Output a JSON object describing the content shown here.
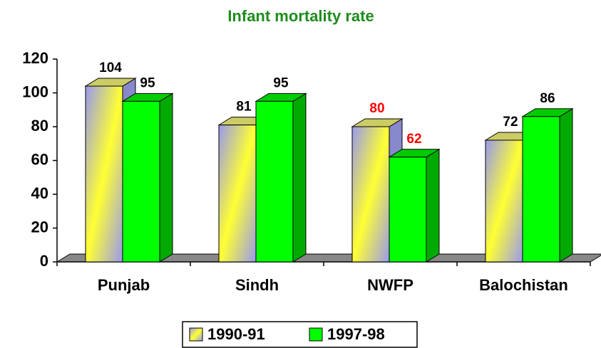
{
  "chart_data": {
    "type": "bar3d",
    "title": "Infant mortality rate",
    "categories": [
      "Punjab",
      "Sindh",
      "NWFP",
      "Balochistan"
    ],
    "series": [
      {
        "name": "1990-91",
        "color": "#ffff33",
        "values": [
          104,
          81,
          80,
          72
        ],
        "label_colors": [
          "#000000",
          "#000000",
          "#ff0000",
          "#000000"
        ]
      },
      {
        "name": "1997-98",
        "color": "#00ff00",
        "values": [
          95,
          95,
          62,
          86
        ],
        "label_colors": [
          "#000000",
          "#000000",
          "#ff0000",
          "#000000"
        ]
      }
    ],
    "ylim": [
      0,
      120
    ],
    "yticks": [
      0,
      20,
      40,
      60,
      80,
      100,
      120
    ],
    "legend": "bottom"
  }
}
